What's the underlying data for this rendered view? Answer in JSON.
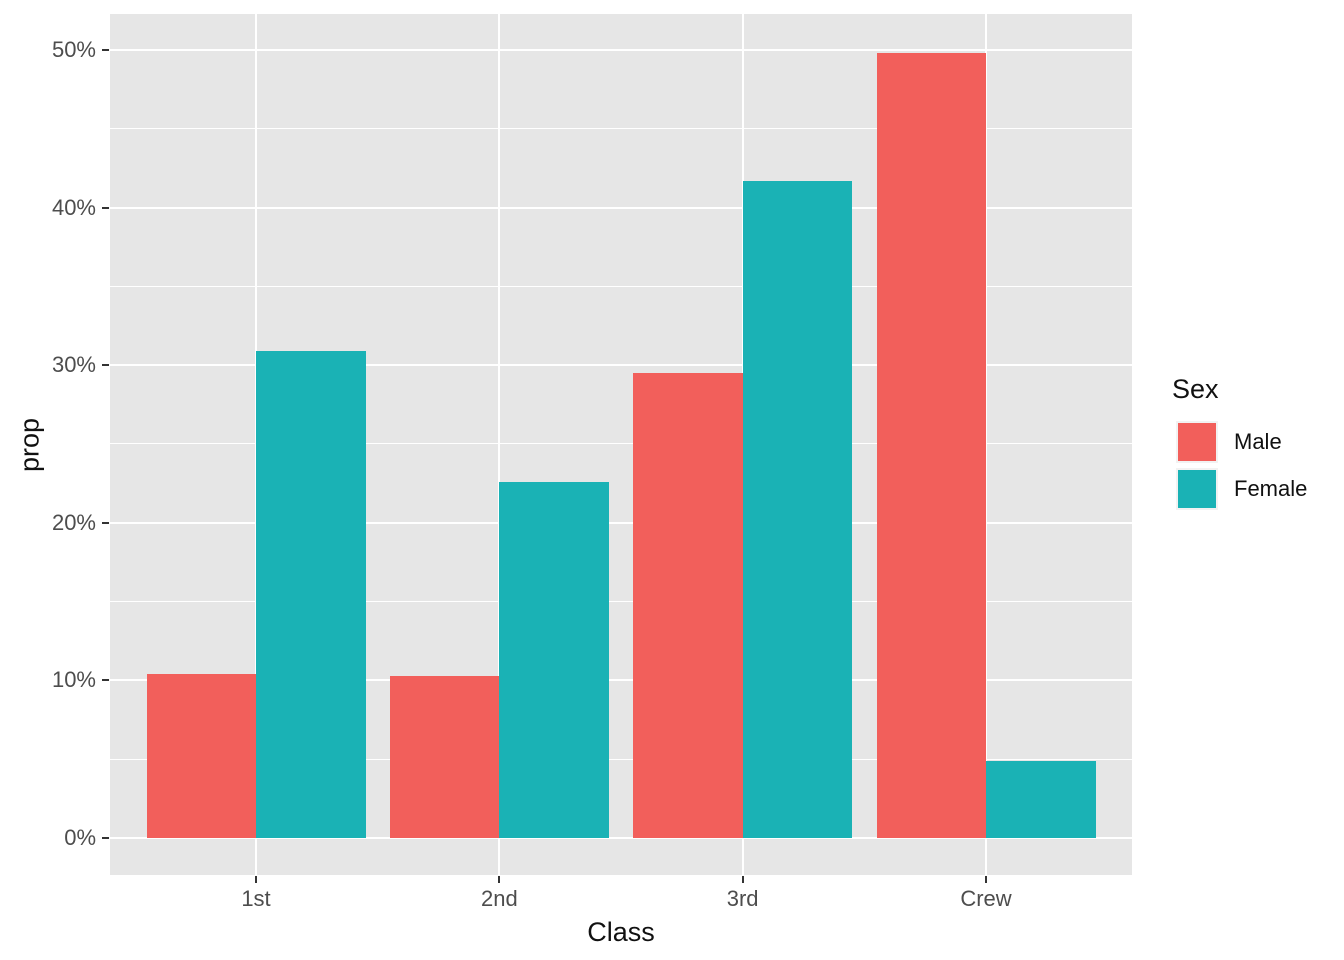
{
  "chart_data": {
    "type": "bar",
    "subtype": "dodged",
    "title": "",
    "xlabel": "Class",
    "ylabel": "prop",
    "categories": [
      "1st",
      "2nd",
      "3rd",
      "Crew"
    ],
    "series": [
      {
        "name": "Male",
        "color": "#F25F5B",
        "values": [
          10.4,
          10.3,
          29.5,
          49.8
        ]
      },
      {
        "name": "Female",
        "color": "#1AB2B5",
        "values": [
          30.9,
          22.6,
          41.7,
          4.9
        ]
      }
    ],
    "y_ticks": [
      {
        "value": 0,
        "label": "0%"
      },
      {
        "value": 10,
        "label": "10%"
      },
      {
        "value": 20,
        "label": "20%"
      },
      {
        "value": 30,
        "label": "30%"
      },
      {
        "value": 40,
        "label": "40%"
      },
      {
        "value": 50,
        "label": "50%"
      }
    ],
    "y_minor_ticks": [
      5,
      15,
      25,
      35,
      45
    ],
    "ylim": [
      -2.36,
      52.28
    ],
    "grid": {
      "horizontal": "major+minor",
      "vertical": "major-at-category-centers",
      "color": "#FFFFFF"
    },
    "legend": {
      "title": "Sex",
      "position": "right",
      "entries": [
        {
          "label": "Male",
          "color": "#F25F5B"
        },
        {
          "label": "Female",
          "color": "#1AB2B5"
        }
      ]
    },
    "style": {
      "panel_background": "#E6E6E6",
      "figure_background": "#FFFFFF",
      "tick_label_color": "#4D4D4D",
      "axis_title_color": "#111111",
      "tick_mark_color": "#333333"
    }
  }
}
